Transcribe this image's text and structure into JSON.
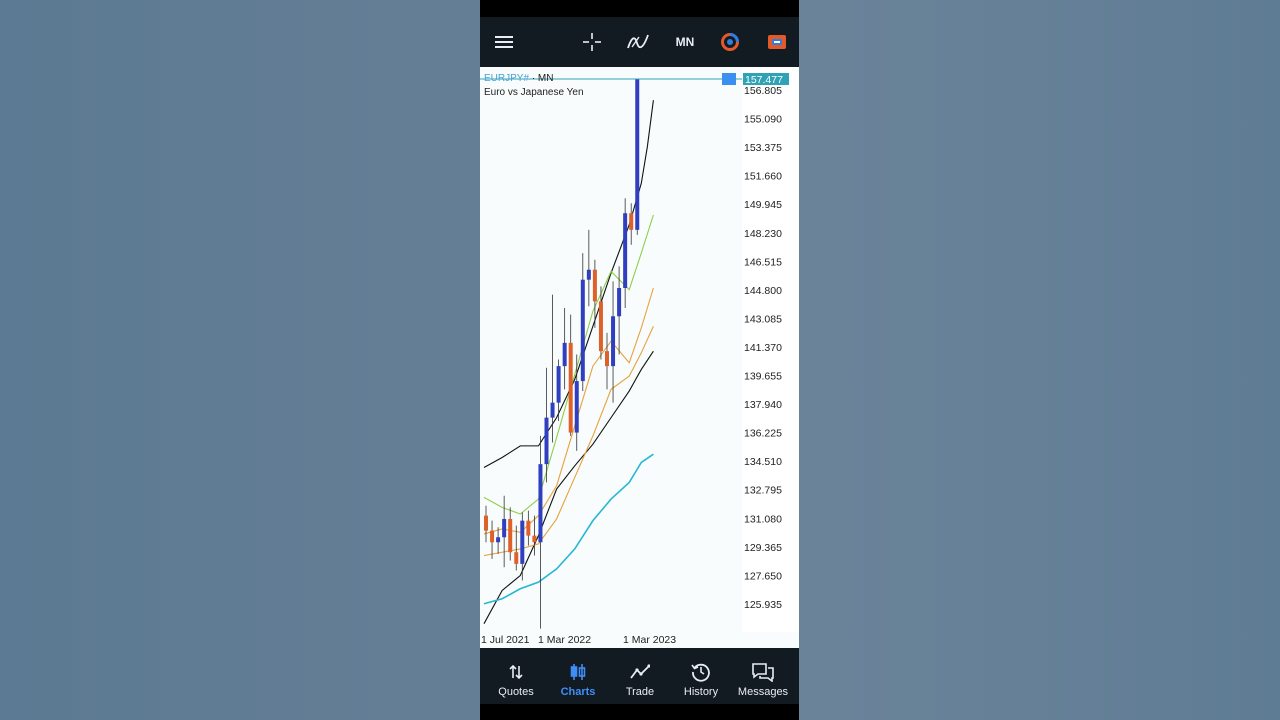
{
  "toolbar": {
    "menu_icon": "hamburger-menu-icon",
    "crosshair_icon": "crosshair-icon",
    "indicators_icon": "indicators-icon",
    "timeframe": "MN",
    "color_scheme_icon": "color-circle-icon",
    "trade_icon": "trade-badge-icon"
  },
  "chart": {
    "symbol": "EURJPY#",
    "timeframe_label": "MN",
    "description": "Euro vs Japanese Yen",
    "current_price": "157.477",
    "price_labels": [
      "156.805",
      "155.090",
      "153.375",
      "151.660",
      "149.945",
      "148.230",
      "146.515",
      "144.800",
      "143.085",
      "141.370",
      "139.655",
      "137.940",
      "136.225",
      "134.510",
      "132.795",
      "131.080",
      "129.365",
      "127.650",
      "125.935"
    ],
    "date_labels": [
      "1 Jul 2021",
      "1 Mar 2022",
      "1 Mar 2023"
    ],
    "colors": {
      "bull": "#2f3fc0",
      "bear": "#e0602a",
      "price_line": "#2fa3b5",
      "ma_black": "#111111",
      "ma_cyan": "#27b7d3",
      "ma_orange": "#e6a23c",
      "ma_green": "#8fcf4a"
    }
  },
  "chart_data": {
    "type": "candlestick",
    "symbol": "EURJPY#",
    "timeframe": "MN",
    "ylim": [
      125.0,
      158.0
    ],
    "current_price": 157.477,
    "candles": [
      {
        "o": 131.2,
        "h": 131.8,
        "l": 129.6,
        "c": 130.3
      },
      {
        "o": 130.3,
        "h": 130.9,
        "l": 128.6,
        "c": 129.6
      },
      {
        "o": 129.6,
        "h": 130.5,
        "l": 128.9,
        "c": 129.9
      },
      {
        "o": 129.9,
        "h": 132.4,
        "l": 128.1,
        "c": 131.0
      },
      {
        "o": 131.0,
        "h": 131.7,
        "l": 128.5,
        "c": 129.0
      },
      {
        "o": 129.0,
        "h": 130.6,
        "l": 127.9,
        "c": 128.3
      },
      {
        "o": 128.3,
        "h": 131.4,
        "l": 127.3,
        "c": 130.9
      },
      {
        "o": 130.9,
        "h": 131.5,
        "l": 129.4,
        "c": 130.0
      },
      {
        "o": 130.0,
        "h": 131.2,
        "l": 128.8,
        "c": 129.6
      },
      {
        "o": 129.6,
        "h": 136.0,
        "l": 124.4,
        "c": 134.3
      },
      {
        "o": 134.3,
        "h": 140.1,
        "l": 133.2,
        "c": 137.1
      },
      {
        "o": 137.1,
        "h": 144.5,
        "l": 135.6,
        "c": 138.0
      },
      {
        "o": 138.0,
        "h": 140.6,
        "l": 136.9,
        "c": 140.2
      },
      {
        "o": 140.2,
        "h": 143.7,
        "l": 138.8,
        "c": 141.6
      },
      {
        "o": 141.6,
        "h": 143.3,
        "l": 136.0,
        "c": 136.2
      },
      {
        "o": 136.2,
        "h": 140.9,
        "l": 135.1,
        "c": 139.3
      },
      {
        "o": 139.3,
        "h": 147.0,
        "l": 138.7,
        "c": 145.4
      },
      {
        "o": 145.4,
        "h": 148.4,
        "l": 143.8,
        "c": 146.0
      },
      {
        "o": 146.0,
        "h": 146.6,
        "l": 142.5,
        "c": 144.1
      },
      {
        "o": 144.1,
        "h": 145.0,
        "l": 140.6,
        "c": 141.1
      },
      {
        "o": 141.1,
        "h": 142.2,
        "l": 138.8,
        "c": 140.2
      },
      {
        "o": 140.2,
        "h": 145.3,
        "l": 138.0,
        "c": 143.2
      },
      {
        "o": 143.2,
        "h": 146.2,
        "l": 140.9,
        "c": 144.9
      },
      {
        "o": 144.9,
        "h": 150.3,
        "l": 143.7,
        "c": 149.4
      },
      {
        "o": 149.4,
        "h": 150.0,
        "l": 147.5,
        "c": 148.4
      },
      {
        "o": 148.4,
        "h": 157.477,
        "l": 148.1,
        "c": 157.477
      }
    ],
    "moving_averages": [
      {
        "name": "",
        "color": "#111111",
        "points": [
          [
            0,
            134.1
          ],
          [
            3,
            134.7
          ],
          [
            6,
            135.4
          ],
          [
            9,
            135.4
          ],
          [
            12,
            137.1
          ],
          [
            15,
            139.4
          ],
          [
            18,
            142.6
          ],
          [
            21,
            145.8
          ],
          [
            24,
            148.7
          ],
          [
            26,
            151.2
          ],
          [
            27,
            153.4
          ],
          [
            28,
            156.2
          ]
        ]
      },
      {
        "name": "",
        "color": "#111111",
        "points": [
          [
            0,
            124.7
          ],
          [
            3,
            126.7
          ],
          [
            6,
            127.6
          ],
          [
            9,
            130.0
          ],
          [
            12,
            132.8
          ],
          [
            15,
            134.2
          ],
          [
            18,
            135.5
          ],
          [
            21,
            137.1
          ],
          [
            24,
            138.7
          ],
          [
            26,
            140.0
          ],
          [
            28,
            141.1
          ]
        ]
      },
      {
        "name": "",
        "color": "#27b7d3",
        "points": [
          [
            0,
            125.9
          ],
          [
            3,
            126.2
          ],
          [
            6,
            126.8
          ],
          [
            9,
            127.2
          ],
          [
            12,
            128.0
          ],
          [
            15,
            129.2
          ],
          [
            18,
            130.9
          ],
          [
            21,
            132.2
          ],
          [
            24,
            133.2
          ],
          [
            26,
            134.4
          ],
          [
            28,
            134.9
          ]
        ]
      },
      {
        "name": "",
        "color": "#e6a23c",
        "points": [
          [
            0,
            128.8
          ],
          [
            3,
            129.0
          ],
          [
            6,
            129.2
          ],
          [
            9,
            129.5
          ],
          [
            12,
            131.0
          ],
          [
            15,
            133.5
          ],
          [
            18,
            136.0
          ],
          [
            21,
            138.8
          ],
          [
            24,
            139.6
          ],
          [
            26,
            141.0
          ],
          [
            28,
            142.6
          ]
        ]
      },
      {
        "name": "",
        "color": "#e6a23c",
        "points": [
          [
            0,
            130.1
          ],
          [
            3,
            130.4
          ],
          [
            6,
            130.2
          ],
          [
            9,
            131.2
          ],
          [
            12,
            133.0
          ],
          [
            15,
            136.6
          ],
          [
            18,
            140.2
          ],
          [
            21,
            141.7
          ],
          [
            24,
            140.4
          ],
          [
            26,
            142.5
          ],
          [
            28,
            144.9
          ]
        ]
      },
      {
        "name": "",
        "color": "#8fcf4a",
        "points": [
          [
            0,
            132.3
          ],
          [
            3,
            131.7
          ],
          [
            6,
            131.3
          ],
          [
            9,
            132.2
          ],
          [
            12,
            135.9
          ],
          [
            15,
            139.7
          ],
          [
            18,
            143.5
          ],
          [
            21,
            145.9
          ],
          [
            24,
            144.8
          ],
          [
            26,
            147.0
          ],
          [
            28,
            149.3
          ]
        ]
      }
    ]
  },
  "nav": {
    "items": [
      {
        "label": "Quotes",
        "icon": "quotes-icon"
      },
      {
        "label": "Charts",
        "icon": "charts-icon"
      },
      {
        "label": "Trade",
        "icon": "trade-icon"
      },
      {
        "label": "History",
        "icon": "history-icon"
      },
      {
        "label": "Messages",
        "icon": "messages-icon"
      }
    ],
    "active": "Charts"
  }
}
